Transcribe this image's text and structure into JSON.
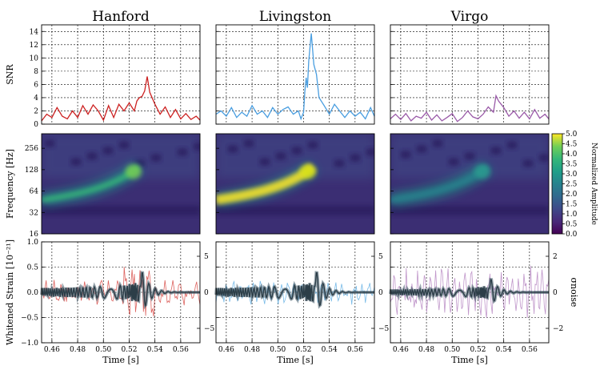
{
  "chart_data": {
    "type": "multi-panel",
    "detectors": [
      {
        "name": "Hanford",
        "snr_color": "#cc2222",
        "strain_color": "#d9534f"
      },
      {
        "name": "Livingston",
        "snr_color": "#4a9ee0",
        "strain_color": "#6ab4e6"
      },
      {
        "name": "Virgo",
        "snr_color": "#9a5aa8",
        "strain_color": "#b98bc4"
      }
    ],
    "snr_row": {
      "ylabel": "SNR",
      "ylim": [
        0,
        15
      ],
      "yticks": [
        "0",
        "2",
        "4",
        "6",
        "8",
        "10",
        "12",
        "14"
      ],
      "series": [
        {
          "x": [
            0.452,
            0.456,
            0.46,
            0.464,
            0.468,
            0.472,
            0.476,
            0.48,
            0.484,
            0.488,
            0.492,
            0.496,
            0.5,
            0.504,
            0.508,
            0.512,
            0.516,
            0.52,
            0.524,
            0.526,
            0.528,
            0.53,
            0.532,
            0.534,
            0.536,
            0.54,
            0.544,
            0.548,
            0.552,
            0.556,
            0.56,
            0.564,
            0.568,
            0.572,
            0.575
          ],
          "y": [
            0.5,
            1.5,
            1.0,
            2.5,
            1.2,
            0.8,
            2.0,
            1.0,
            2.8,
            1.5,
            2.9,
            2.0,
            0.6,
            2.8,
            1.0,
            3.0,
            2.0,
            3.2,
            2.0,
            3.5,
            4.0,
            4.2,
            5.0,
            7.2,
            4.8,
            3.0,
            1.5,
            2.6,
            1.0,
            2.2,
            0.8,
            1.6,
            0.7,
            1.2,
            0.6
          ]
        },
        {
          "x": [
            0.452,
            0.456,
            0.46,
            0.464,
            0.468,
            0.472,
            0.476,
            0.48,
            0.484,
            0.488,
            0.492,
            0.496,
            0.5,
            0.504,
            0.508,
            0.512,
            0.516,
            0.518,
            0.52,
            0.521,
            0.522,
            0.523,
            0.524,
            0.526,
            0.528,
            0.53,
            0.532,
            0.536,
            0.54,
            0.544,
            0.548,
            0.552,
            0.556,
            0.56,
            0.564,
            0.568,
            0.572,
            0.575
          ],
          "y": [
            1.5,
            2.0,
            1.2,
            2.5,
            1.0,
            1.8,
            1.2,
            2.8,
            1.5,
            2.0,
            1.0,
            2.5,
            1.5,
            2.2,
            2.6,
            1.5,
            2.0,
            0.8,
            1.8,
            5.0,
            7.0,
            5.5,
            9.5,
            13.7,
            9.0,
            7.5,
            4.0,
            2.8,
            1.5,
            3.0,
            2.0,
            1.0,
            2.0,
            1.2,
            1.8,
            0.8,
            2.5,
            1.2
          ]
        },
        {
          "x": [
            0.452,
            0.456,
            0.46,
            0.464,
            0.468,
            0.472,
            0.476,
            0.48,
            0.484,
            0.488,
            0.492,
            0.496,
            0.5,
            0.504,
            0.508,
            0.512,
            0.516,
            0.52,
            0.524,
            0.528,
            0.532,
            0.534,
            0.536,
            0.54,
            0.544,
            0.548,
            0.552,
            0.556,
            0.56,
            0.564,
            0.568,
            0.572,
            0.575
          ],
          "y": [
            0.8,
            1.5,
            0.7,
            1.6,
            0.5,
            1.2,
            0.9,
            1.8,
            0.6,
            1.4,
            0.5,
            1.0,
            1.6,
            0.4,
            1.0,
            2.0,
            1.1,
            0.8,
            1.5,
            2.6,
            1.8,
            4.3,
            3.5,
            2.5,
            1.2,
            2.0,
            0.9,
            1.8,
            0.8,
            2.2,
            0.9,
            1.5,
            0.8
          ]
        }
      ]
    },
    "spectrogram_row": {
      "ylabel": "Frequency [Hz]",
      "yticks": [
        "16",
        "32",
        "64",
        "128",
        "256"
      ],
      "colorbar_label": "Normalized Amplitude",
      "colorbar_ticks": [
        "0.0",
        "0.5",
        "1.0",
        "1.5",
        "2.0",
        "2.5",
        "3.0",
        "3.5",
        "4.0",
        "4.5",
        "5.0"
      ],
      "colorbar_range": [
        0,
        5
      ],
      "track_peaks": [
        3.2,
        5.0,
        1.9
      ]
    },
    "strain_row": {
      "ylabel": "Whitened Strain [10⁻²¹]",
      "right_label": "σnoise",
      "left_ylim": [
        -1.0,
        1.0
      ],
      "left_yticks": [
        "−1.0",
        "−0.5",
        "0.0",
        "0.5",
        "1.0"
      ],
      "right_ticks": [
        [
          "−5",
          "0",
          "5"
        ],
        [
          "−5",
          "0",
          "5"
        ],
        [
          "−2",
          "0",
          "2"
        ]
      ],
      "xlabel": "Time [s]",
      "xlim": [
        0.452,
        0.575
      ],
      "xticks": [
        "0.46",
        "0.48",
        "0.50",
        "0.52",
        "0.54",
        "0.56"
      ],
      "template_color": "#3f5866"
    }
  }
}
